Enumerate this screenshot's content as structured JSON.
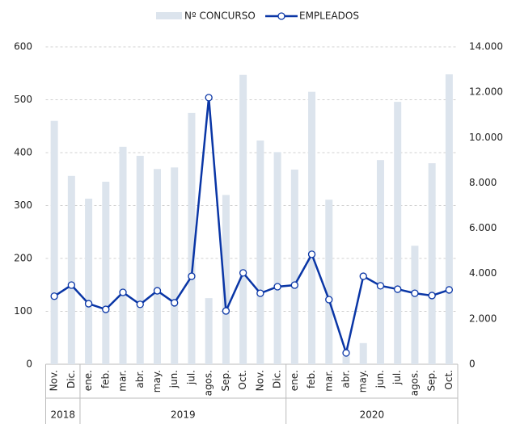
{
  "chart_data": {
    "type": "bar_line",
    "categories": [
      "Nov.",
      "Dic.",
      "ene.",
      "feb.",
      "mar.",
      "abr.",
      "may.",
      "jun.",
      "jul.",
      "agos.",
      "Sep.",
      "Oct.",
      "Nov.",
      "Dic.",
      "ene.",
      "feb.",
      "mar.",
      "abr.",
      "may.",
      "jun.",
      "jul.",
      "agos.",
      "Sep.",
      "Oct."
    ],
    "year_groups": [
      {
        "label": "2018",
        "span": 2
      },
      {
        "label": "2019",
        "span": 12
      },
      {
        "label": "2020",
        "span": 10
      }
    ],
    "series": [
      {
        "name": "Nº CONCURSO",
        "type": "bar",
        "color": "#dce4ed",
        "values": [
          460,
          356,
          313,
          345,
          411,
          394,
          369,
          372,
          475,
          125,
          320,
          547,
          423,
          401,
          368,
          515,
          311,
          15,
          40,
          386,
          496,
          224,
          380,
          548
        ]
      },
      {
        "name": "EMPLEADOS",
        "type": "line",
        "axis": "y2",
        "color": "#0a36a6",
        "values": [
          3000,
          3490,
          2670,
          2420,
          3170,
          2640,
          3240,
          2710,
          3880,
          11760,
          2350,
          4030,
          3130,
          3420,
          3490,
          4850,
          2850,
          500,
          3880,
          3460,
          3310,
          3130,
          3030,
          3280
        ]
      }
    ],
    "ylim": [
      0,
      600
    ],
    "yticks": [
      0,
      100,
      200,
      300,
      400,
      500,
      600
    ],
    "y2lim": [
      0,
      14000
    ],
    "y2ticks": [
      0,
      {
        "value": 2000,
        "label": "2.000"
      },
      {
        "value": 4000,
        "label": "4.000"
      },
      {
        "value": 6000,
        "label": "6.000"
      },
      {
        "value": 8000,
        "label": "8.000"
      },
      {
        "value": 10000,
        "label": "10.000"
      },
      {
        "value": 12000,
        "label": "12.000"
      },
      {
        "value": 14000,
        "label": "14.000"
      }
    ],
    "grid": true
  }
}
